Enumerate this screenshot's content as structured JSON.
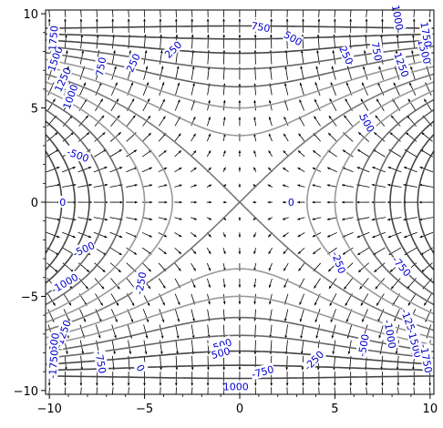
{
  "chart_data": {
    "type": "contour",
    "title": "",
    "xlabel": "",
    "ylabel": "",
    "xlim": [
      -10.2,
      10.2
    ],
    "ylim": [
      -10.2,
      10.2
    ],
    "grid": false,
    "function": "x^2*y^2/... saddle-like field; contour levels of f(x,y)",
    "xticks": [
      {
        "value": -10,
        "label": "−10"
      },
      {
        "value": -5,
        "label": "−5"
      },
      {
        "value": 0,
        "label": "0"
      },
      {
        "value": 5,
        "label": "5"
      },
      {
        "value": 10,
        "label": "10"
      }
    ],
    "yticks": [
      {
        "value": 10,
        "label": "10"
      },
      {
        "value": 5,
        "label": "5"
      },
      {
        "value": 0,
        "label": "0"
      },
      {
        "value": -5,
        "label": "−5"
      },
      {
        "value": -10,
        "label": "−10"
      }
    ],
    "levels": [
      -1750,
      -1500,
      -1250,
      -1000,
      -750,
      -500,
      -250,
      0,
      250,
      500,
      750,
      1000,
      1250,
      1500,
      1750
    ],
    "contour_labels": [
      {
        "text": "750",
        "x": 1.1,
        "y": 9.3,
        "angle": -10
      },
      {
        "text": "500",
        "x": 2.8,
        "y": 8.7,
        "angle": -30
      },
      {
        "text": "250",
        "x": -3.5,
        "y": 8.1,
        "angle": 45
      },
      {
        "text": "250",
        "x": -5.6,
        "y": 7.4,
        "angle": 65
      },
      {
        "text": "750",
        "x": -7.3,
        "y": 7.2,
        "angle": 80
      },
      {
        "text": "1000",
        "x": -8.9,
        "y": 5.6,
        "angle": 70
      },
      {
        "text": "1250",
        "x": -9.3,
        "y": 6.5,
        "angle": 65
      },
      {
        "text": "1500",
        "x": -9.7,
        "y": 7.6,
        "angle": 70
      },
      {
        "text": "1750",
        "x": -9.8,
        "y": 8.7,
        "angle": 85
      },
      {
        "text": "-500",
        "x": -8.5,
        "y": 2.5,
        "angle": -20
      },
      {
        "text": "0",
        "x": -9.3,
        "y": 0.0,
        "angle": 0
      },
      {
        "text": "0",
        "x": 2.7,
        "y": 0.0,
        "angle": 0
      },
      {
        "text": "250",
        "x": 5.6,
        "y": 7.8,
        "angle": -65
      },
      {
        "text": "750",
        "x": 7.2,
        "y": 8.0,
        "angle": -80
      },
      {
        "text": "1250",
        "x": 8.5,
        "y": 7.3,
        "angle": -70
      },
      {
        "text": "1000",
        "x": 8.3,
        "y": 9.8,
        "angle": -80
      },
      {
        "text": "1500",
        "x": 9.7,
        "y": 8.0,
        "angle": -75
      },
      {
        "text": "1750",
        "x": 9.8,
        "y": 8.9,
        "angle": -80
      },
      {
        "text": "500",
        "x": 6.7,
        "y": 4.2,
        "angle": -60
      },
      {
        "text": "-500",
        "x": -8.2,
        "y": -2.5,
        "angle": 25
      },
      {
        "text": "-1000",
        "x": -9.2,
        "y": -4.3,
        "angle": 30
      },
      {
        "text": "-250",
        "x": -5.2,
        "y": -4.3,
        "angle": 80
      },
      {
        "text": "-1250",
        "x": -9.3,
        "y": -7.0,
        "angle": 70
      },
      {
        "text": "-1500",
        "x": -9.8,
        "y": -7.7,
        "angle": 80
      },
      {
        "text": "-1750",
        "x": -9.8,
        "y": -8.6,
        "angle": 85
      },
      {
        "text": "-750",
        "x": -7.3,
        "y": -8.5,
        "angle": -80
      },
      {
        "text": "0",
        "x": -5.2,
        "y": -8.8,
        "angle": -60
      },
      {
        "text": "-500",
        "x": -1.0,
        "y": -7.6,
        "angle": 20
      },
      {
        "text": "-750",
        "x": 1.2,
        "y": -9.0,
        "angle": 15
      },
      {
        "text": "1000",
        "x": -0.2,
        "y": -9.8,
        "angle": 0
      },
      {
        "text": "-250",
        "x": 3.9,
        "y": -8.4,
        "angle": 45
      },
      {
        "text": "-500",
        "x": 6.5,
        "y": -7.6,
        "angle": 80
      },
      {
        "text": "-250",
        "x": 5.2,
        "y": -3.2,
        "angle": -70
      },
      {
        "text": "-750",
        "x": 8.5,
        "y": -3.4,
        "angle": -50
      },
      {
        "text": "-1000",
        "x": 7.9,
        "y": -7.0,
        "angle": -80
      },
      {
        "text": "-1250",
        "x": 8.9,
        "y": -6.4,
        "angle": -70
      },
      {
        "text": "-1500",
        "x": 9.2,
        "y": -7.5,
        "angle": -75
      },
      {
        "text": "-1750",
        "x": 9.8,
        "y": -8.3,
        "angle": -80
      },
      {
        "text": "500",
        "x": -1.0,
        "y": -8.0,
        "angle": 15
      }
    ]
  }
}
